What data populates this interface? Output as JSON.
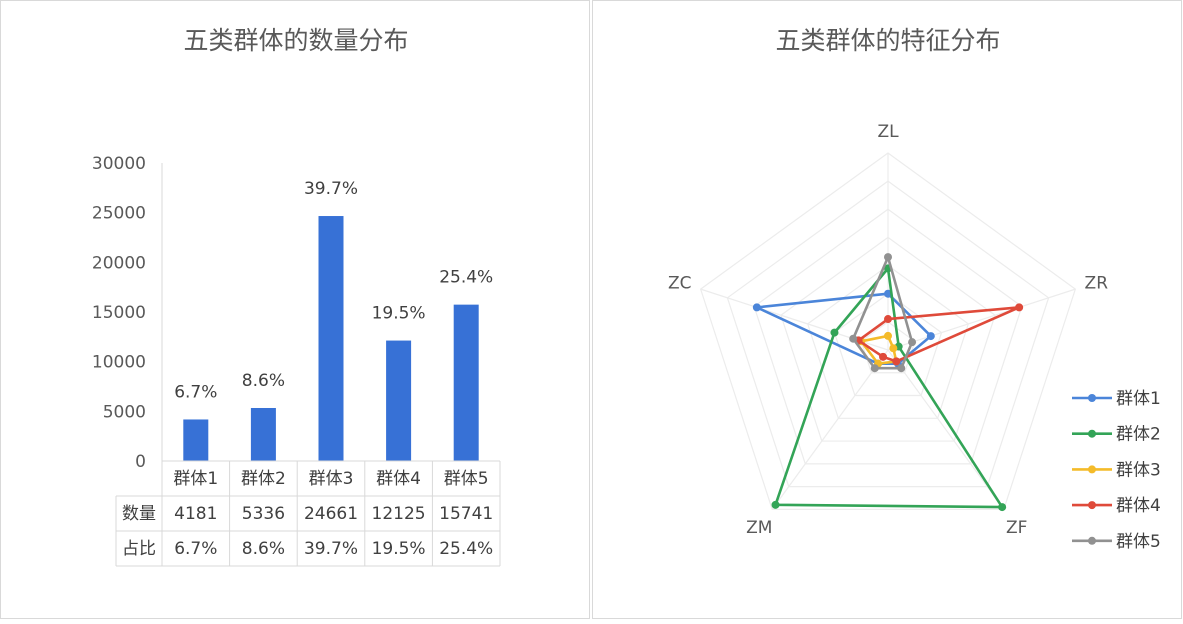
{
  "chart_data": [
    {
      "type": "bar",
      "title": "五类群体的数量分布",
      "categories": [
        "群体1",
        "群体2",
        "群体3",
        "群体4",
        "群体5"
      ],
      "values": [
        4181,
        5336,
        24661,
        12125,
        15741
      ],
      "data_labels": [
        "6.7%",
        "8.6%",
        "39.7%",
        "19.5%",
        "25.4%"
      ],
      "ylim": [
        0,
        30000
      ],
      "yticks": [
        "0",
        "5000",
        "10000",
        "15000",
        "20000",
        "25000",
        "30000"
      ],
      "bar_color": "#3771d6",
      "grid": false,
      "data_table": {
        "rows": [
          {
            "label": "数量",
            "values": [
              "4181",
              "5336",
              "24661",
              "12125",
              "15741"
            ]
          },
          {
            "label": "占比",
            "values": [
              "6.7%",
              "8.6%",
              "39.7%",
              "19.5%",
              "25.4%"
            ]
          }
        ]
      }
    },
    {
      "type": "radar",
      "title": "五类群体的特征分布",
      "axes": [
        "ZL",
        "ZR",
        "ZF",
        "ZM",
        "ZC"
      ],
      "rlim": [
        0,
        7
      ],
      "legend_position": "right",
      "series": [
        {
          "name": "群体1",
          "color": "#4b85d9",
          "values": [
            2.0,
            1.6,
            0.6,
            0.6,
            4.9
          ]
        },
        {
          "name": "群体2",
          "color": "#33a457",
          "values": [
            2.9,
            0.4,
            6.9,
            6.8,
            2.0
          ]
        },
        {
          "name": "群体3",
          "color": "#f4bb2a",
          "values": [
            0.5,
            0.2,
            0.5,
            0.6,
            1.0
          ]
        },
        {
          "name": "群体4",
          "color": "#df4a3a",
          "values": [
            1.1,
            4.9,
            0.5,
            0.3,
            1.1
          ]
        },
        {
          "name": "群体5",
          "color": "#919191",
          "values": [
            3.3,
            0.9,
            0.8,
            0.8,
            1.3
          ]
        }
      ]
    }
  ]
}
